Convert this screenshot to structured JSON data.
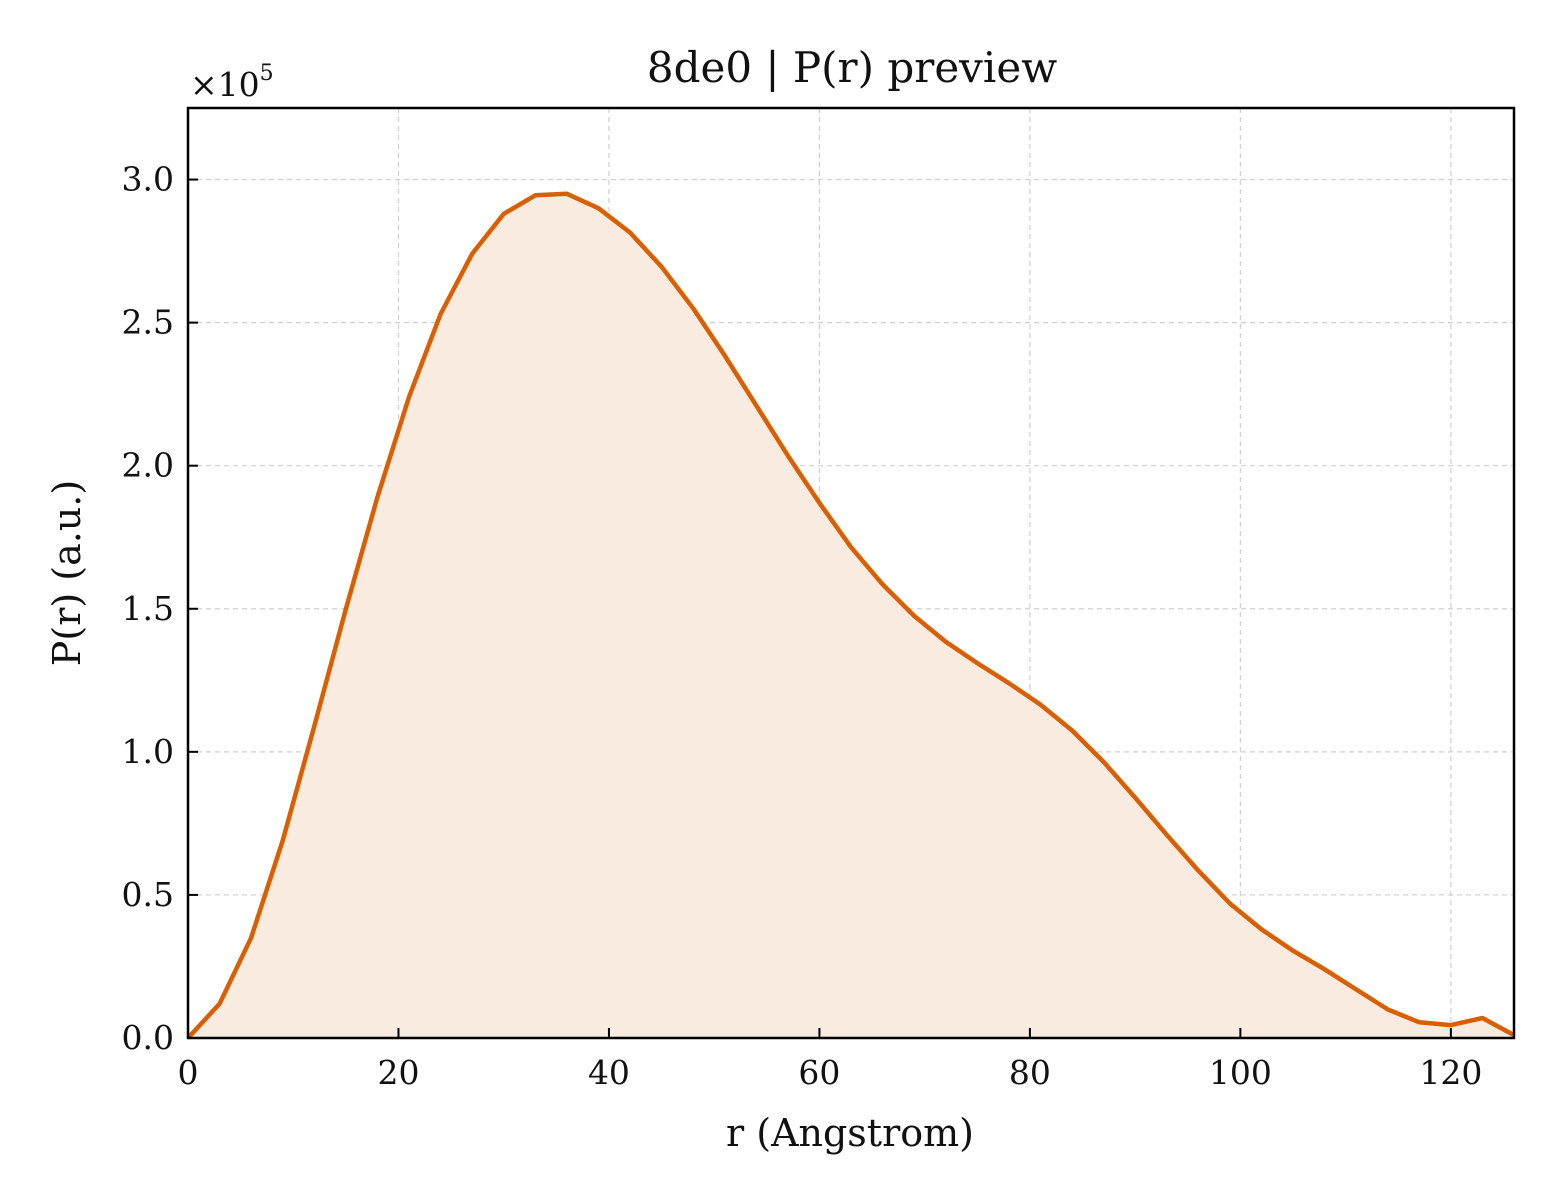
{
  "chart_data": {
    "type": "area",
    "title": "8de0 | P(r) preview",
    "xlabel": "r (Angstrom)",
    "ylabel": "P(r) (a.u.)",
    "y_multiplier_label": "×10",
    "y_multiplier_exponent": "5",
    "xlim": [
      0,
      126
    ],
    "ylim": [
      0,
      3.25
    ],
    "x_ticks": [
      0,
      20,
      40,
      60,
      80,
      100,
      120
    ],
    "x_tick_labels": [
      "0",
      "20",
      "40",
      "60",
      "80",
      "100",
      "120"
    ],
    "y_ticks": [
      0,
      0.5,
      1.0,
      1.5,
      2.0,
      2.5,
      3.0
    ],
    "y_tick_labels": [
      "0.0",
      "0.5",
      "1.0",
      "1.5",
      "2.0",
      "2.5",
      "3.0"
    ],
    "grid": true,
    "line_color": "#d95f02",
    "fill_color": "#f9ebdf",
    "series": [
      {
        "x": [
          0,
          3,
          6,
          9,
          12,
          15,
          18,
          21,
          24,
          27,
          30,
          33,
          36,
          39,
          42,
          45,
          48,
          51,
          54,
          57,
          60,
          63,
          66,
          69,
          72,
          75,
          78,
          81,
          84,
          87,
          90,
          93,
          96,
          99,
          102,
          105,
          108,
          111,
          114,
          117,
          120,
          123,
          126
        ],
        "values": [
          0.0,
          0.12,
          0.35,
          0.69,
          1.09,
          1.5,
          1.89,
          2.24,
          2.53,
          2.74,
          2.88,
          2.945,
          2.95,
          2.9,
          2.815,
          2.695,
          2.55,
          2.385,
          2.21,
          2.035,
          1.87,
          1.715,
          1.585,
          1.475,
          1.385,
          1.31,
          1.24,
          1.165,
          1.075,
          0.965,
          0.84,
          0.71,
          0.585,
          0.47,
          0.38,
          0.305,
          0.24,
          0.17,
          0.1,
          0.055,
          0.045,
          0.07,
          0.01
        ]
      }
    ]
  }
}
